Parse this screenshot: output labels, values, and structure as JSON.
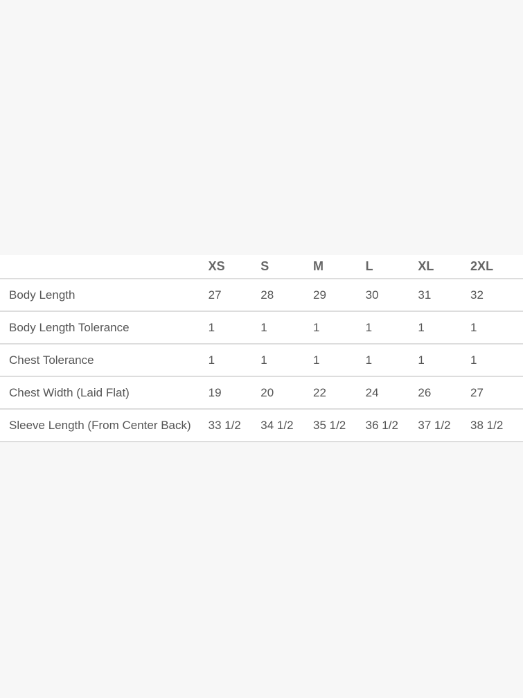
{
  "size_chart": {
    "sizes": [
      "XS",
      "S",
      "M",
      "L",
      "XL",
      "2XL"
    ],
    "rows": [
      {
        "label": "Body Length",
        "values": [
          "27",
          "28",
          "29",
          "30",
          "31",
          "32"
        ]
      },
      {
        "label": "Body Length Tolerance",
        "values": [
          "1",
          "1",
          "1",
          "1",
          "1",
          "1"
        ]
      },
      {
        "label": "Chest Tolerance",
        "values": [
          "1",
          "1",
          "1",
          "1",
          "1",
          "1"
        ]
      },
      {
        "label": "Chest Width (Laid Flat)",
        "values": [
          "19",
          "20",
          "22",
          "24",
          "26",
          "27"
        ]
      },
      {
        "label": "Sleeve Length (From Center Back)",
        "values": [
          "33 1/2",
          "34 1/2",
          "35 1/2",
          "36 1/2",
          "37 1/2",
          "38 1/2"
        ]
      }
    ]
  }
}
